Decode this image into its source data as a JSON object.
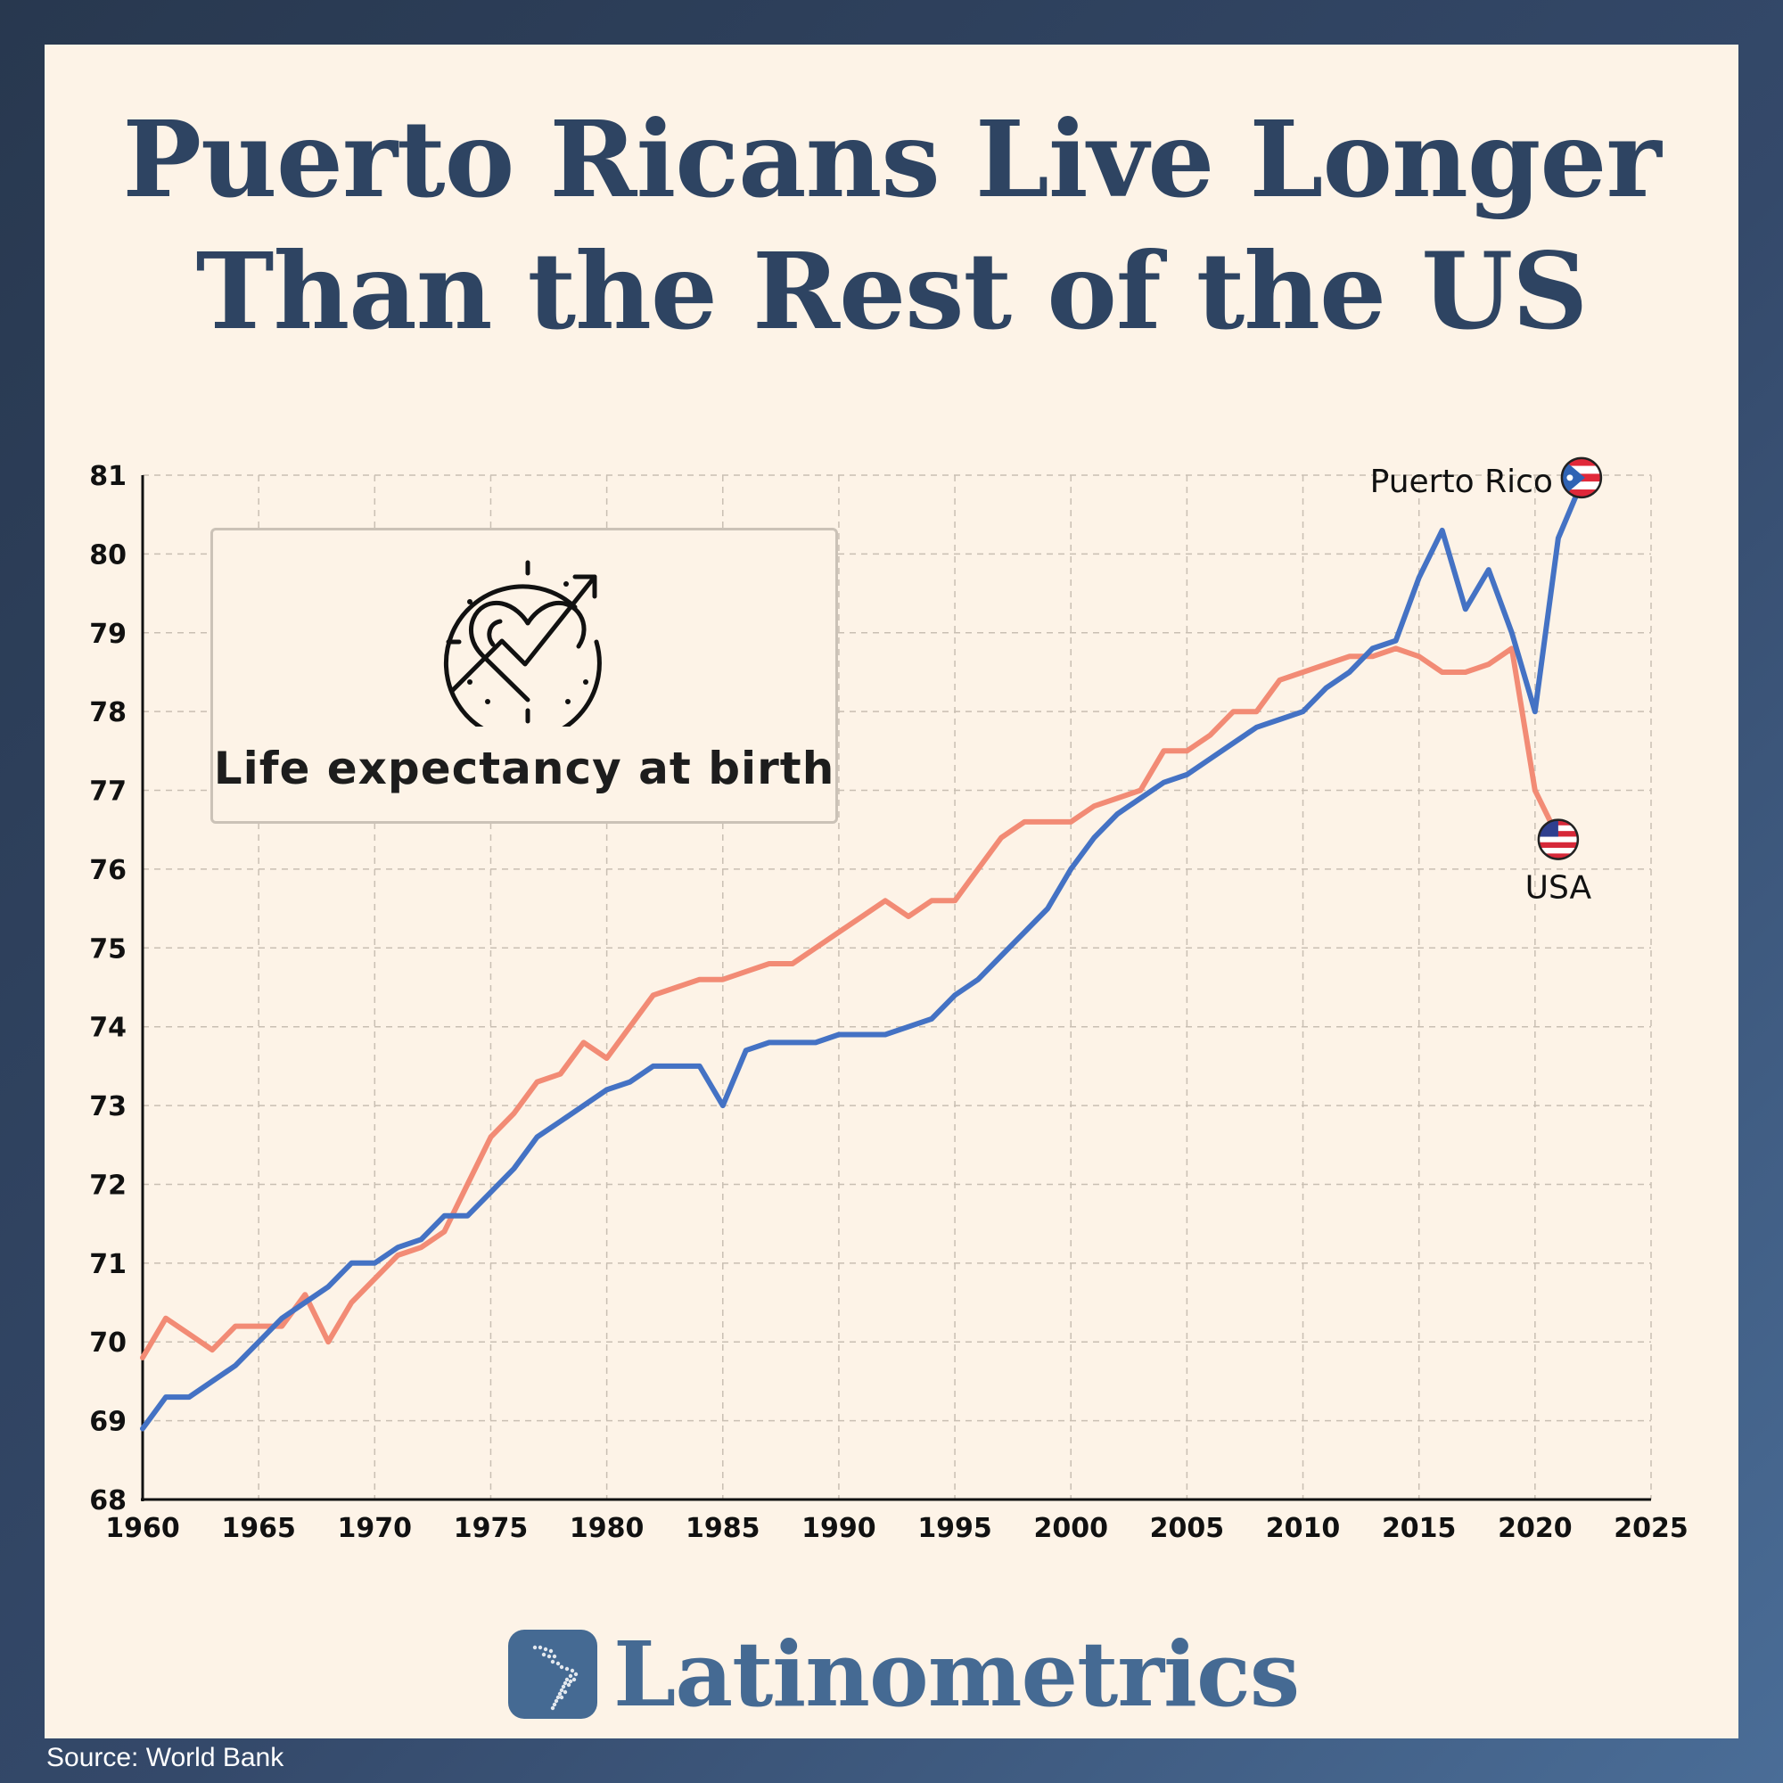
{
  "title_lines": [
    "Puerto Ricans Live Longer",
    "Than the Rest of the US"
  ],
  "legend_label": "Life expectancy at birth",
  "brand": "Latinometrics",
  "source": "Source: World Bank",
  "icons": {
    "legend": "heart-trend-icon",
    "brand": "latin-america-map-icon",
    "pr_flag": "puerto-rico-flag-icon",
    "us_flag": "us-flag-icon"
  },
  "colors": {
    "puerto_rico": "#4472c4",
    "usa": "#f28b75",
    "text": "#2e4462",
    "card": "#fdf3e7"
  },
  "chart_data": {
    "type": "line",
    "title": "",
    "xlabel": "",
    "ylabel": "",
    "xlim": [
      1960,
      2025
    ],
    "ylim": [
      68,
      81
    ],
    "x_ticks": [
      1960,
      1965,
      1970,
      1975,
      1980,
      1985,
      1990,
      1995,
      2000,
      2005,
      2010,
      2015,
      2020,
      2025
    ],
    "y_ticks": [
      68,
      69,
      70,
      71,
      72,
      73,
      74,
      75,
      76,
      77,
      78,
      79,
      80,
      81
    ],
    "grid": true,
    "series": [
      {
        "name": "Puerto Rico",
        "color": "#4472c4",
        "x": [
          1960,
          1961,
          1962,
          1963,
          1964,
          1965,
          1966,
          1967,
          1968,
          1969,
          1970,
          1971,
          1972,
          1973,
          1974,
          1975,
          1976,
          1977,
          1978,
          1979,
          1980,
          1981,
          1982,
          1983,
          1984,
          1985,
          1986,
          1987,
          1988,
          1989,
          1990,
          1991,
          1992,
          1993,
          1994,
          1995,
          1996,
          1997,
          1998,
          1999,
          2000,
          2001,
          2002,
          2003,
          2004,
          2005,
          2006,
          2007,
          2008,
          2009,
          2010,
          2011,
          2012,
          2013,
          2014,
          2015,
          2016,
          2017,
          2018,
          2019,
          2020,
          2021,
          2022
        ],
        "y": [
          68.9,
          69.3,
          69.3,
          69.5,
          69.7,
          70.0,
          70.3,
          70.5,
          70.7,
          71.0,
          71.0,
          71.2,
          71.3,
          71.6,
          71.6,
          71.9,
          72.2,
          72.6,
          72.8,
          73.0,
          73.2,
          73.3,
          73.5,
          73.5,
          73.5,
          73.0,
          73.7,
          73.8,
          73.8,
          73.8,
          73.9,
          73.9,
          73.9,
          74.0,
          74.1,
          74.4,
          74.6,
          74.9,
          75.2,
          75.5,
          76.0,
          76.4,
          76.7,
          76.9,
          77.1,
          77.2,
          77.4,
          77.6,
          77.8,
          77.9,
          78.0,
          78.3,
          78.5,
          78.8,
          78.9,
          79.7,
          80.3,
          79.3,
          79.8,
          79.0,
          78.0,
          80.2,
          80.9
        ]
      },
      {
        "name": "USA",
        "color": "#f28b75",
        "x": [
          1960,
          1961,
          1962,
          1963,
          1964,
          1965,
          1966,
          1967,
          1968,
          1969,
          1970,
          1971,
          1972,
          1973,
          1974,
          1975,
          1976,
          1977,
          1978,
          1979,
          1980,
          1981,
          1982,
          1983,
          1984,
          1985,
          1986,
          1987,
          1988,
          1989,
          1990,
          1991,
          1992,
          1993,
          1994,
          1995,
          1996,
          1997,
          1998,
          1999,
          2000,
          2001,
          2002,
          2003,
          2004,
          2005,
          2006,
          2007,
          2008,
          2009,
          2010,
          2011,
          2012,
          2013,
          2014,
          2015,
          2016,
          2017,
          2018,
          2019,
          2020,
          2021
        ],
        "y": [
          69.8,
          70.3,
          70.1,
          69.9,
          70.2,
          70.2,
          70.2,
          70.6,
          70.0,
          70.5,
          70.8,
          71.1,
          71.2,
          71.4,
          72.0,
          72.6,
          72.9,
          73.3,
          73.4,
          73.8,
          73.6,
          74.0,
          74.4,
          74.5,
          74.6,
          74.6,
          74.7,
          74.8,
          74.8,
          75.0,
          75.2,
          75.4,
          75.6,
          75.4,
          75.6,
          75.6,
          76.0,
          76.4,
          76.6,
          76.6,
          76.6,
          76.8,
          76.9,
          77.0,
          77.5,
          77.5,
          77.7,
          78.0,
          78.0,
          78.4,
          78.5,
          78.6,
          78.7,
          78.7,
          78.8,
          78.7,
          78.5,
          78.5,
          78.6,
          78.8,
          77.0,
          76.4
        ]
      }
    ],
    "annotations": [
      "Puerto Rico",
      "USA"
    ]
  }
}
